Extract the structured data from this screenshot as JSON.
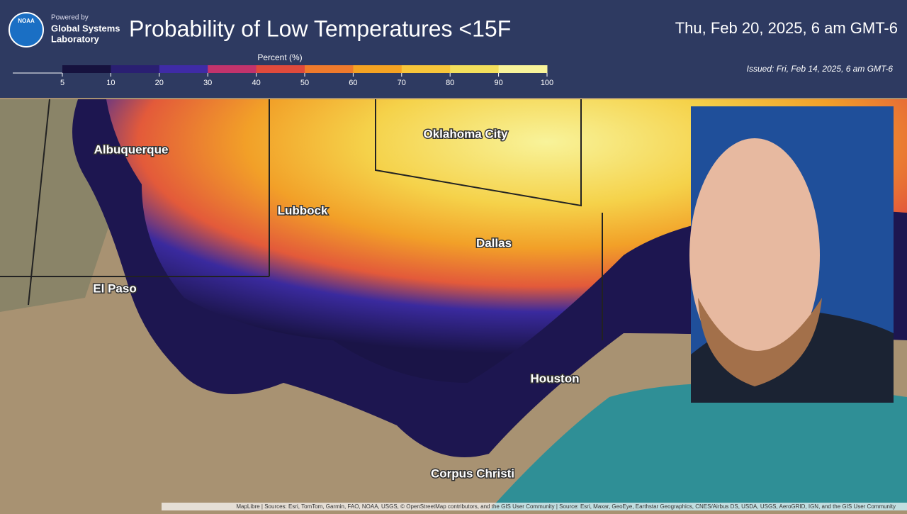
{
  "header": {
    "logo": "NOAA",
    "powered_by": "Powered by",
    "org_line1": "Global Systems",
    "org_line2": "Laboratory",
    "title": "Probability of Low Temperatures <15F",
    "valid_time": "Thu, Feb 20, 2025, 6 am GMT-6",
    "issued": "Issued: Fri, Feb 14, 2025, 6 am GMT-6"
  },
  "legend": {
    "title": "Percent (%)",
    "ticks": [
      5,
      10,
      20,
      30,
      40,
      50,
      60,
      70,
      80,
      90,
      100
    ],
    "colors": [
      "#16123e",
      "#2a1f72",
      "#3f2ba6",
      "#c2336c",
      "#e04a3c",
      "#ef7a2c",
      "#f5a323",
      "#f7c53a",
      "#f3df5c",
      "#f8f39a"
    ]
  },
  "cities": [
    {
      "label": "Albuquerque"
    },
    {
      "label": "El Paso"
    },
    {
      "label": "Lubbock"
    },
    {
      "label": "Oklahoma City"
    },
    {
      "label": "Dallas"
    },
    {
      "label": "Houston"
    },
    {
      "label": "Corpus Christi"
    }
  ],
  "attribution": "MapLibre | Sources: Esri, TomTom, Garmin, FAO, NOAA, USGS, © OpenStreetMap contributors, and the GIS User Community | Source: Esri, Maxar, GeoEye, Earthstar Geographics, CNES/Airbus DS, USDA, USGS, AeroGRID, IGN, and the GIS User Community"
}
